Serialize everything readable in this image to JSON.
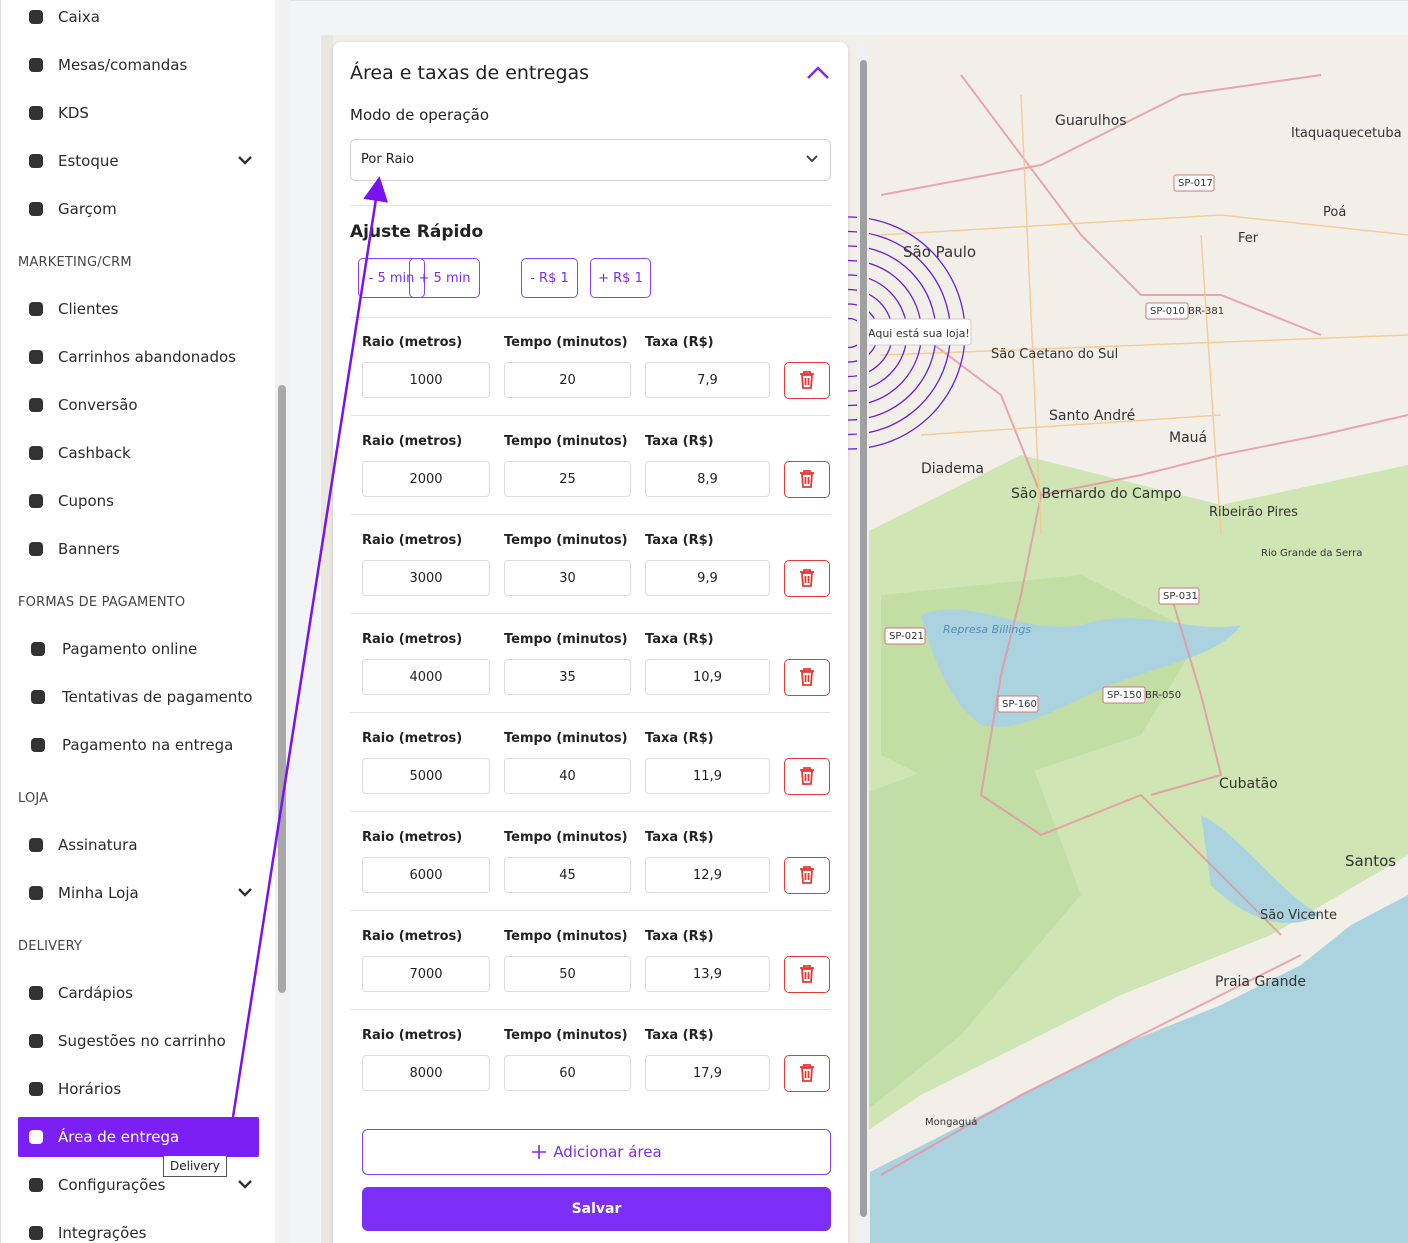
{
  "sidebar": {
    "sections": [
      {
        "items": [
          {
            "label": "Caixa"
          },
          {
            "label": "Mesas/comandas"
          },
          {
            "label": "KDS"
          },
          {
            "label": "Estoque",
            "expandable": true
          },
          {
            "label": "Garçom"
          }
        ]
      },
      {
        "heading": "MARKETING/CRM",
        "items": [
          {
            "label": "Clientes"
          },
          {
            "label": "Carrinhos abandonados"
          },
          {
            "label": "Conversão"
          },
          {
            "label": "Cashback"
          },
          {
            "label": "Cupons"
          },
          {
            "label": "Banners"
          }
        ]
      },
      {
        "heading": "FORMAS DE PAGAMENTO",
        "items": [
          {
            "label": "Pagamento online"
          },
          {
            "label": "Tentativas de pagamento"
          },
          {
            "label": "Pagamento na entrega"
          }
        ]
      },
      {
        "heading": "LOJA",
        "items": [
          {
            "label": "Assinatura"
          },
          {
            "label": "Minha Loja",
            "expandable": true
          }
        ]
      },
      {
        "heading": "DELIVERY",
        "items": [
          {
            "label": "Cardápios"
          },
          {
            "label": "Sugestões no carrinho"
          },
          {
            "label": "Horários"
          },
          {
            "label": "Área de entrega",
            "active": true,
            "tooltip": "Delivery"
          },
          {
            "label": "Configurações",
            "expandable": true
          },
          {
            "label": "Integrações"
          }
        ]
      }
    ]
  },
  "panel": {
    "title": "Área e taxas de entregas",
    "mode_label": "Modo de operação",
    "mode_value": "Por Raio",
    "quick_title": "Ajuste Rápido",
    "quick_buttons": [
      "- 5 min",
      "+ 5 min",
      "- R$ 1",
      "+ R$ 1"
    ],
    "columns": [
      "Raio (metros)",
      "Tempo (minutos)",
      "Taxa (R$)"
    ],
    "rows": [
      [
        1000,
        20,
        "7,9"
      ],
      [
        2000,
        25,
        "8,9"
      ],
      [
        3000,
        30,
        "9,9"
      ],
      [
        4000,
        35,
        "10,9"
      ],
      [
        5000,
        40,
        "11,9"
      ],
      [
        6000,
        45,
        "12,9"
      ],
      [
        7000,
        50,
        "13,9"
      ],
      [
        8000,
        60,
        "17,9"
      ]
    ],
    "add_button": "Adicionar área",
    "save_button": "Salvar"
  },
  "map": {
    "marker_label": "Aqui está sua loja!",
    "labels": [
      "Guarulhos",
      "Itaquaquecetuba",
      "São Paulo",
      "São Caetano do Sul",
      "Santo André",
      "Mauá",
      "Diadema",
      "São Bernardo do Campo",
      "Ribeirão Pires",
      "Rio Grande da Serra",
      "Represa Billings",
      "Cubatão",
      "Santos",
      "São Vicente",
      "Praia Grande",
      "Mongaguá",
      "Poá",
      "Fer",
      "SP-017",
      "SP-010 BR-381",
      "SP-021",
      "SP-031",
      "SP-160",
      "SP-150 BR-050"
    ]
  }
}
